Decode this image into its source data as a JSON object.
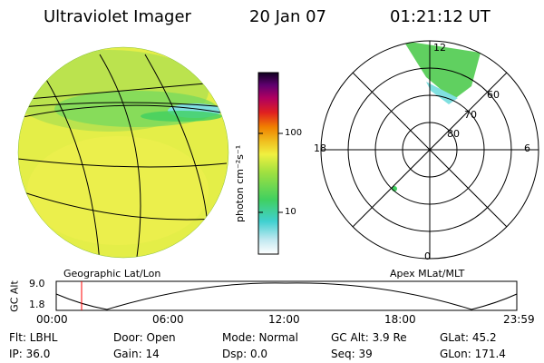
{
  "header": {
    "instrument": "Ultraviolet Imager",
    "date": "20 Jan 07",
    "time": "01:21:12 UT"
  },
  "colors": {
    "globe_fill": "#e8f040",
    "aurora_green": "#40d060",
    "aurora_cyan": "#60e0e0",
    "grid": "#000000",
    "time_marker": "#ff0000"
  },
  "colorbar": {
    "unit_label": "photon cm⁻²s⁻¹",
    "ticks": [
      "100",
      "10"
    ]
  },
  "polar_plot": {
    "mlt_labels": {
      "top": "12",
      "bottom": "0",
      "left": "18",
      "right": "6"
    },
    "lat_labels": [
      "80",
      "70",
      "60"
    ]
  },
  "labels": {
    "geo": "Geographic Lat/Lon",
    "apex": "Apex  MLat/MLT"
  },
  "altitude_plot": {
    "axis_label": "GC Alt",
    "y_max": "9.0",
    "y_min": "1.8",
    "x_ticks": [
      "00:00",
      "06:00",
      "12:00",
      "18:00",
      "23:59"
    ]
  },
  "info": {
    "filter": "Flt: LBHL",
    "door": "Door: Open",
    "mode": "Mode: Normal",
    "gc_alt": "GC Alt: 3.9 Re",
    "glat": "GLat:  45.2",
    "ip": "IP: 36.0",
    "gain": "Gain: 14",
    "dsp": "Dsp:     0.0",
    "seq": "Seq: 39",
    "glon": "GLon: 171.4"
  }
}
